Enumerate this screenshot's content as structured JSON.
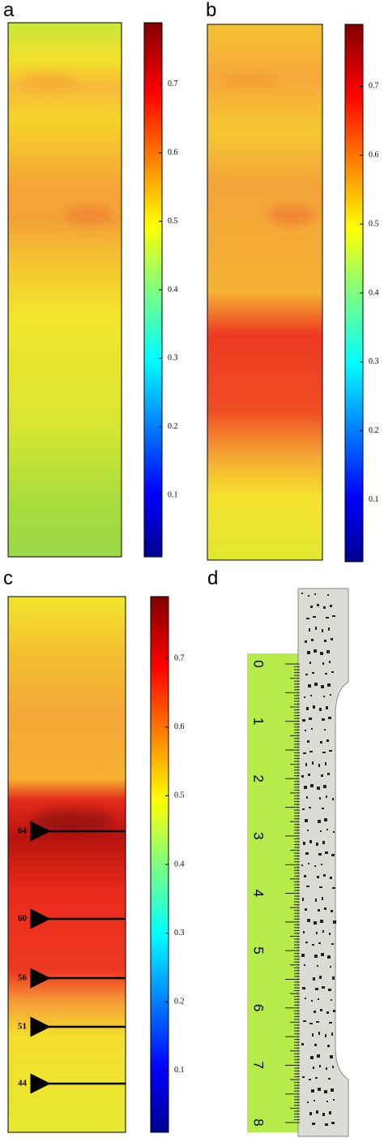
{
  "panels": [
    {
      "label": "a",
      "colorbar": {
        "lim": [
          0.01,
          0.79
        ],
        "ticks": [
          0.1,
          0.2,
          0.3,
          0.4,
          0.5,
          0.6,
          0.7
        ]
      }
    },
    {
      "label": "b",
      "colorbar": {
        "lim": [
          0.01,
          0.79
        ],
        "ticks": [
          0.1,
          0.2,
          0.3,
          0.4,
          0.5,
          0.6,
          0.7
        ]
      }
    },
    {
      "label": "c",
      "colorbar": {
        "lim": [
          0.01,
          0.79
        ],
        "ticks": [
          0.1,
          0.2,
          0.3,
          0.4,
          0.5,
          0.6,
          0.7
        ]
      },
      "arrows": [
        64,
        60,
        56,
        51,
        44
      ]
    },
    {
      "label": "d",
      "ruler_labels": [
        0,
        1,
        2,
        3,
        4,
        5,
        6,
        7,
        8
      ]
    }
  ]
}
